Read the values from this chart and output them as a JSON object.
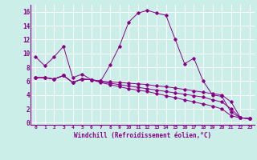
{
  "xlabel": "Windchill (Refroidissement éolien,°C)",
  "background_color": "#cceee8",
  "line_color": "#880088",
  "grid_color": "#ffffff",
  "x_ticks": [
    0,
    1,
    2,
    3,
    4,
    5,
    6,
    7,
    8,
    9,
    10,
    11,
    12,
    13,
    14,
    15,
    16,
    17,
    18,
    19,
    20,
    21,
    22,
    23
  ],
  "y_ticks": [
    0,
    2,
    4,
    6,
    8,
    10,
    12,
    14,
    16
  ],
  "xlim": [
    -0.5,
    23.5
  ],
  "ylim": [
    -0.3,
    17.0
  ],
  "line1_y": [
    9.5,
    8.2,
    9.5,
    11.0,
    6.5,
    7.0,
    6.2,
    6.0,
    8.3,
    11.0,
    14.5,
    15.8,
    16.2,
    15.8,
    15.5,
    12.0,
    8.5,
    9.3,
    6.0,
    4.0,
    3.8,
    1.5,
    0.7,
    0.6
  ],
  "line2_y": [
    6.5,
    6.5,
    6.3,
    6.8,
    5.8,
    6.3,
    6.2,
    6.0,
    5.9,
    5.8,
    5.7,
    5.6,
    5.5,
    5.3,
    5.2,
    5.0,
    4.8,
    4.6,
    4.4,
    4.2,
    4.0,
    3.0,
    0.7,
    0.6
  ],
  "line3_y": [
    6.5,
    6.5,
    6.3,
    6.8,
    5.8,
    6.3,
    6.2,
    5.9,
    5.7,
    5.5,
    5.3,
    5.1,
    4.9,
    4.7,
    4.5,
    4.3,
    4.1,
    3.9,
    3.7,
    3.3,
    3.0,
    2.0,
    0.7,
    0.6
  ],
  "line4_y": [
    6.5,
    6.5,
    6.3,
    6.8,
    5.8,
    6.3,
    6.2,
    5.8,
    5.5,
    5.2,
    4.9,
    4.7,
    4.5,
    4.2,
    3.9,
    3.6,
    3.3,
    3.0,
    2.7,
    2.4,
    2.0,
    1.0,
    0.7,
    0.6
  ]
}
